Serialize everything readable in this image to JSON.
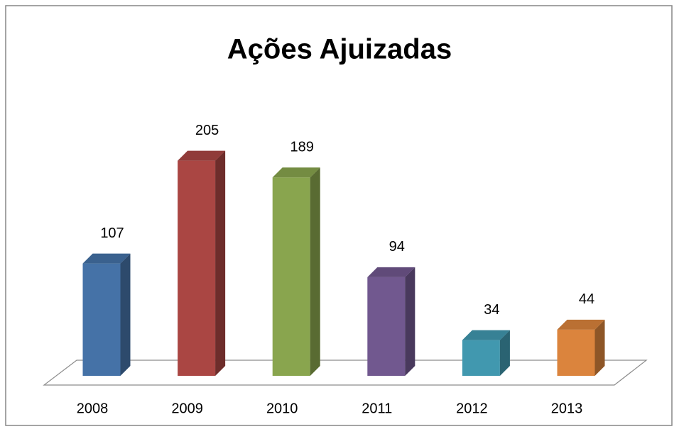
{
  "chart_data": {
    "type": "bar",
    "title": "Ações Ajuizadas",
    "categories": [
      "2008",
      "2009",
      "2010",
      "2011",
      "2012",
      "2013"
    ],
    "values": [
      107,
      205,
      189,
      94,
      34,
      44
    ],
    "colors": [
      "#4572a7",
      "#aa4643",
      "#89a54e",
      "#71588f",
      "#4198af",
      "#db843d"
    ]
  }
}
